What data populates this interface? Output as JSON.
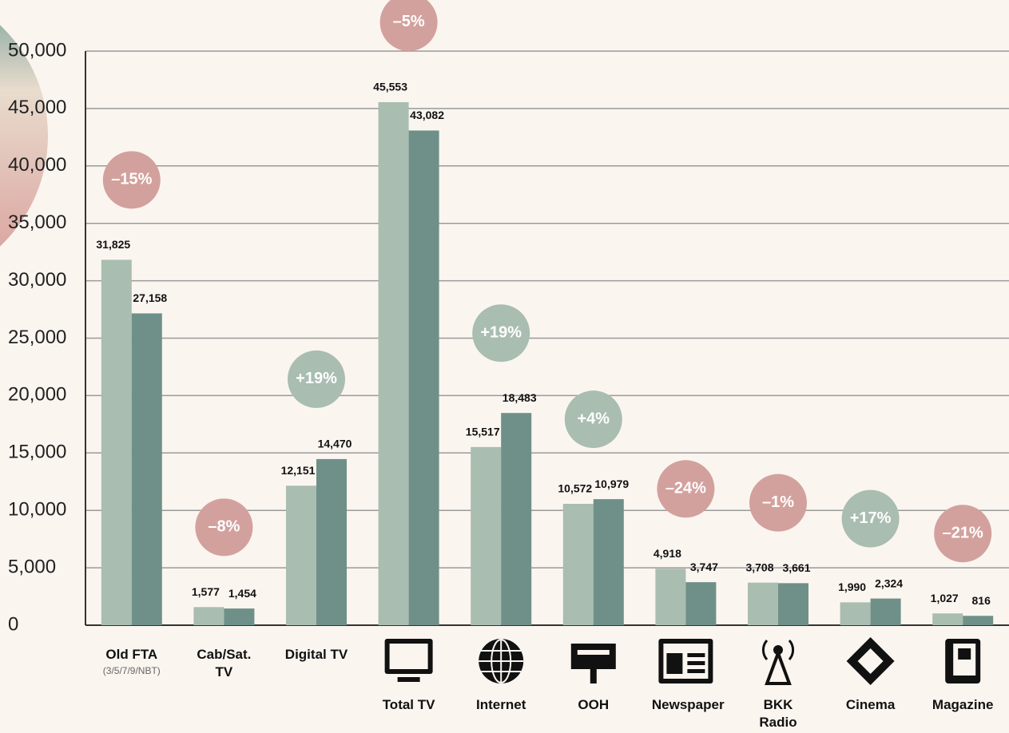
{
  "chart_data": {
    "type": "bar",
    "categories": [
      "Old FTA",
      "Cab/Sat. TV",
      "Digital TV",
      "Total TV",
      "Internet",
      "OOH",
      "Newspaper",
      "BKK Radio",
      "Cinema",
      "Magazine"
    ],
    "category_notes": [
      "(3/5/7/9/NBT)",
      null,
      null,
      null,
      null,
      null,
      null,
      null,
      null,
      null
    ],
    "series": [
      {
        "color": "#a9bdb1",
        "values": [
          31825,
          1577,
          12151,
          45553,
          15517,
          10572,
          4918,
          3708,
          1990,
          1027
        ],
        "value_labels": [
          "31,825",
          "1,577",
          "12,151",
          "45,553",
          "15,517",
          "10,572",
          "4,918",
          "3,708",
          "1,990",
          "1,027"
        ]
      },
      {
        "color": "#6e9088",
        "values": [
          27158,
          1454,
          14470,
          43082,
          18483,
          10979,
          3747,
          3661,
          2324,
          816
        ],
        "value_labels": [
          "27,158",
          "1,454",
          "14,470",
          "43,082",
          "18,483",
          "10,979",
          "3,747",
          "3,661",
          "2,324",
          "816"
        ]
      }
    ],
    "changes": [
      {
        "text": "–15%",
        "color": "#d3a19d"
      },
      {
        "text": "–8%",
        "color": "#d3a19d"
      },
      {
        "text": "+19%",
        "color": "#a9bdb1"
      },
      {
        "text": "–5%",
        "color": "#d3a19d"
      },
      {
        "text": "+19%",
        "color": "#a9bdb1"
      },
      {
        "text": "+4%",
        "color": "#a9bdb1"
      },
      {
        "text": "–24%",
        "color": "#d3a19d"
      },
      {
        "text": "–1%",
        "color": "#d3a19d"
      },
      {
        "text": "+17%",
        "color": "#a9bdb1"
      },
      {
        "text": "–21%",
        "color": "#d3a19d"
      }
    ],
    "ylim": [
      0,
      50000
    ],
    "yticks": [
      0,
      {
        "value": 5000,
        "label": "5,000"
      },
      {
        "value": 10000,
        "label": "10,000"
      },
      {
        "value": 15000,
        "label": "15,000"
      },
      {
        "value": 20000,
        "label": "20,000"
      },
      {
        "value": 25000,
        "label": "25,000"
      },
      {
        "value": 30000,
        "label": "30,000"
      },
      {
        "value": 35000,
        "label": "35,000"
      },
      {
        "value": 40000,
        "label": "40,000"
      },
      {
        "value": 45000,
        "label": "45,000"
      },
      {
        "value": 50000,
        "label": "50,000"
      }
    ],
    "grid": true
  }
}
